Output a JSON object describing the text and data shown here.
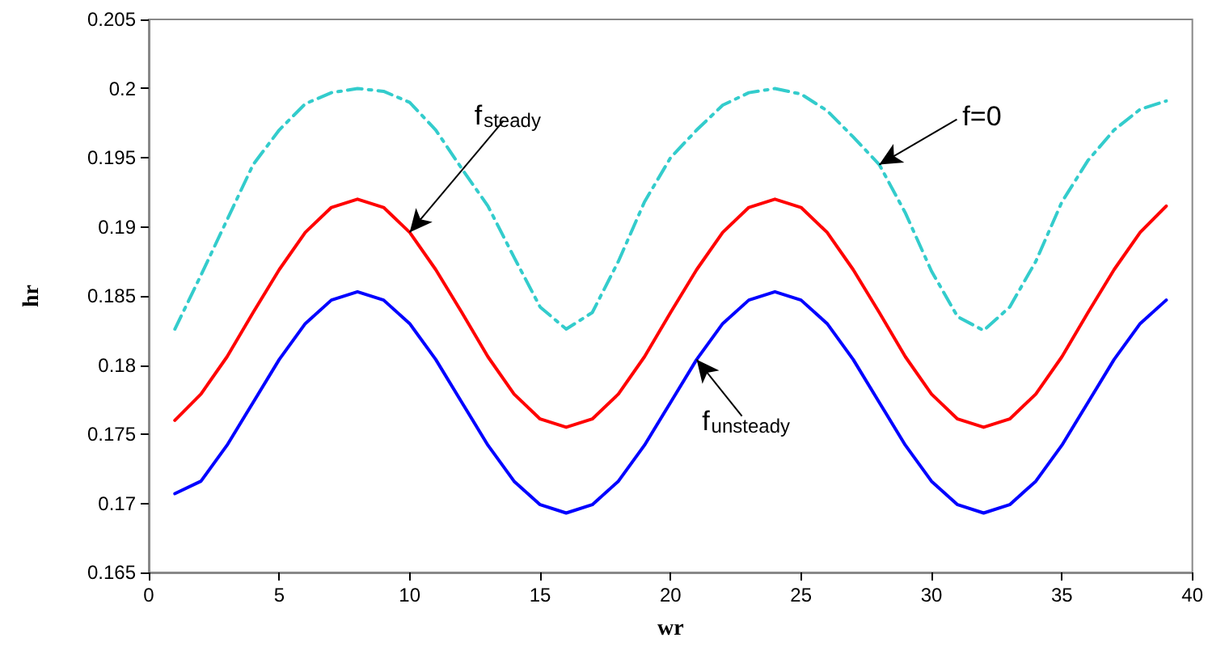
{
  "chart_data": {
    "type": "line",
    "xlabel": "wr",
    "ylabel": "hr",
    "x": [
      1,
      2,
      3,
      4,
      5,
      6,
      7,
      8,
      9,
      10,
      11,
      12,
      13,
      14,
      15,
      16,
      17,
      18,
      19,
      20,
      21,
      22,
      23,
      24,
      25,
      26,
      27,
      28,
      29,
      30,
      31,
      32,
      33,
      34,
      35,
      36,
      37,
      38,
      39
    ],
    "series": [
      {
        "name": null,
        "color": "#33cccc",
        "line_style": "dashed",
        "values": [
          0.1826,
          0.1865,
          0.1905,
          0.1945,
          0.197,
          0.1989,
          0.1997,
          0.2,
          0.1998,
          0.199,
          0.197,
          0.1942,
          0.1915,
          0.1878,
          0.1842,
          0.1826,
          0.1838,
          0.1875,
          0.1918,
          0.195,
          0.197,
          0.1988,
          0.1997,
          0.2,
          0.1996,
          0.1984,
          0.1965,
          0.1945,
          0.191,
          0.1868,
          0.1835,
          0.1825,
          0.1842,
          0.1875,
          0.1918,
          0.1948,
          0.197,
          0.1985,
          0.1991
        ]
      },
      {
        "name": null,
        "color": "#ff0000",
        "line_style": "solid",
        "values": [
          0.176,
          0.1779,
          0.1806,
          0.1838,
          0.1869,
          0.1896,
          0.1914,
          0.192,
          0.1914,
          0.1896,
          0.1869,
          0.1838,
          0.1806,
          0.1779,
          0.1761,
          0.1755,
          0.1761,
          0.1779,
          0.1806,
          0.1838,
          0.1869,
          0.1896,
          0.1914,
          0.192,
          0.1914,
          0.1896,
          0.1869,
          0.1838,
          0.1806,
          0.1779,
          0.1761,
          0.1755,
          0.1761,
          0.1779,
          0.1806,
          0.1838,
          0.1869,
          0.1896,
          0.1915
        ]
      },
      {
        "name": null,
        "color": "#0000ff",
        "line_style": "solid",
        "values": [
          0.1707,
          0.1716,
          0.1742,
          0.1773,
          0.1804,
          0.183,
          0.1847,
          0.1853,
          0.1847,
          0.183,
          0.1804,
          0.1773,
          0.1742,
          0.1716,
          0.1699,
          0.1693,
          0.1699,
          0.1716,
          0.1742,
          0.1773,
          0.1804,
          0.183,
          0.1847,
          0.1853,
          0.1847,
          0.183,
          0.1804,
          0.1773,
          0.1742,
          0.1716,
          0.1699,
          0.1693,
          0.1699,
          0.1716,
          0.1742,
          0.1773,
          0.1804,
          0.183,
          0.1847
        ]
      }
    ],
    "xlim": [
      0,
      40
    ],
    "xticks": [
      0,
      5,
      10,
      15,
      20,
      25,
      30,
      35,
      40
    ],
    "ylim": [
      0.165,
      0.205
    ],
    "yticks": [
      0.165,
      0.17,
      0.175,
      0.18,
      0.185,
      0.19,
      0.195,
      0.2,
      0.205
    ],
    "grid": false,
    "marker": "none",
    "annotations": [
      {
        "text": "f$_{steady}$",
        "x": 10,
        "y": 0.1896
      },
      {
        "text": "f=0",
        "x": 28,
        "y": 0.1945
      },
      {
        "text": "f$_{unsteady}$",
        "x": 21,
        "y": 0.1804
      }
    ]
  }
}
